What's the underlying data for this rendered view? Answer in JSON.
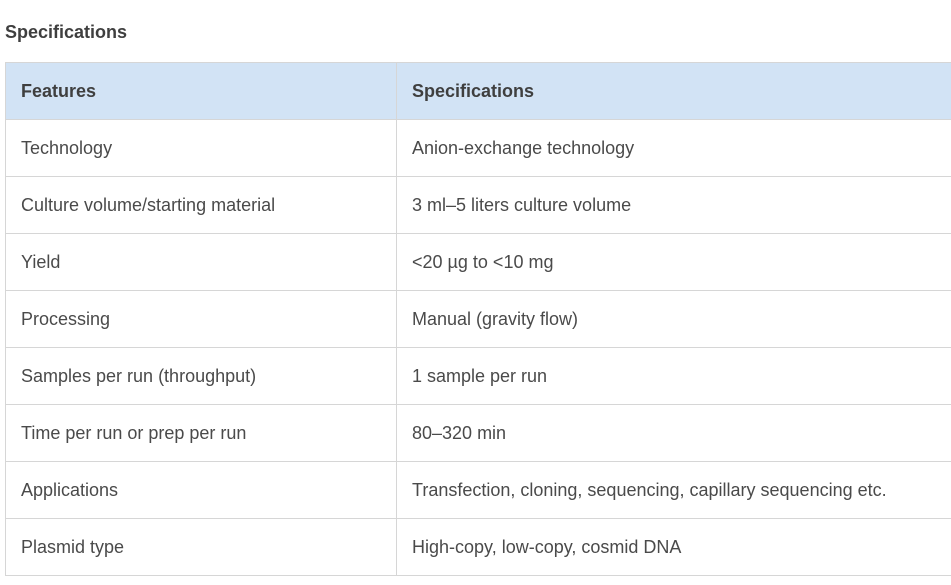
{
  "section": {
    "title": "Specifications"
  },
  "table": {
    "headers": [
      "Features",
      "Specifications"
    ],
    "rows": [
      [
        "Technology",
        "Anion-exchange technology"
      ],
      [
        "Culture volume/starting material",
        "3 ml–5 liters culture volume"
      ],
      [
        "Yield",
        "<20 µg to <10 mg"
      ],
      [
        "Processing",
        "Manual (gravity flow)"
      ],
      [
        "Samples per run (throughput)",
        "1 sample per run"
      ],
      [
        "Time per run or prep per run",
        "80–320 min"
      ],
      [
        "Applications",
        "Transfection, cloning, sequencing, capillary sequencing etc."
      ],
      [
        "Plasmid type",
        "High-copy, low-copy, cosmid DNA"
      ]
    ]
  },
  "colors": {
    "header_bg": "#d2e3f5",
    "border": "#d6d6d6",
    "text": "#444444"
  }
}
